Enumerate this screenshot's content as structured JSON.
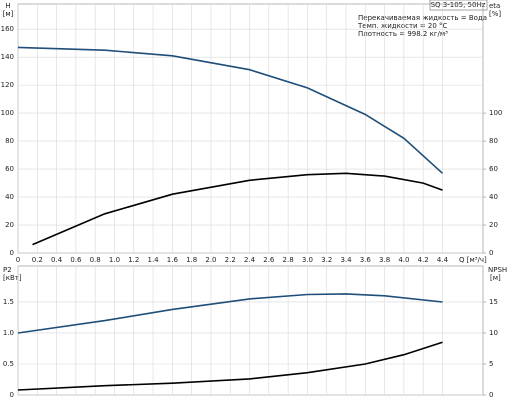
{
  "chart_data": [
    {
      "type": "line",
      "model": "SQ 3-105, 50Hz",
      "annotations": [
        "Перекачиваемая жидкость = Вода",
        "Темп. жидкости = 20 °C",
        "Плотность = 998.2 кг/м³"
      ],
      "ylabel": "H",
      "yunit": "[м]",
      "y2label": "eta",
      "y2unit": "[%]",
      "xlabel": "Q [м³/ч]",
      "xlim": [
        0,
        4.82
      ],
      "xticks": [
        0,
        0.2,
        0.4,
        0.6,
        0.8,
        {
          "value": 1,
          "label": "1.0"
        },
        1.2,
        1.4,
        1.6,
        1.8,
        {
          "value": 2,
          "label": "2.0"
        },
        2.2,
        2.4,
        2.6,
        2.8,
        {
          "value": 3,
          "label": "3.0"
        },
        3.2,
        3.4,
        3.6,
        3.8,
        {
          "value": 4,
          "label": "4.0"
        },
        4.2,
        4.4
      ],
      "ylim": [
        0,
        178
      ],
      "yticks": [
        0,
        20,
        40,
        60,
        80,
        100,
        120,
        140,
        160
      ],
      "y2lim": [
        0,
        178
      ],
      "y2ticks": [
        0,
        20,
        40,
        60,
        80,
        100
      ],
      "grid": true,
      "series": [
        {
          "color": "#1f4e79",
          "axis": "y",
          "x": [
            0,
            0.9,
            1.6,
            2.4,
            3.0,
            3.6,
            4.0,
            4.4
          ],
          "values": [
            147,
            145,
            141,
            131,
            118,
            99,
            82,
            57
          ]
        },
        {
          "color": "#000000",
          "axis": "y2",
          "x": [
            0.15,
            0.9,
            1.6,
            2.4,
            3.0,
            3.4,
            3.8,
            4.2,
            4.4
          ],
          "values": [
            6,
            28,
            42,
            52,
            56,
            57,
            55,
            50,
            45
          ]
        }
      ]
    },
    {
      "type": "line",
      "ylabel": "P2",
      "yunit": "[кВт]",
      "y2label": "NPSH",
      "y2unit": "[м]",
      "xlim": [
        0,
        4.82
      ],
      "ylim": [
        0,
        2.08
      ],
      "yticks": [
        0,
        0.5,
        {
          "value": 1,
          "label": "1.0"
        },
        1.5
      ],
      "y2lim": [
        0,
        20.8
      ],
      "y2ticks": [
        0,
        5,
        10,
        15
      ],
      "grid": true,
      "series": [
        {
          "color": "#1f4e79",
          "axis": "y",
          "x": [
            0,
            0.9,
            1.6,
            2.4,
            3.0,
            3.4,
            3.8,
            4.4
          ],
          "values": [
            1.0,
            1.2,
            1.38,
            1.55,
            1.62,
            1.63,
            1.6,
            1.5
          ]
        },
        {
          "color": "#000000",
          "axis": "y2",
          "x": [
            0,
            0.9,
            1.6,
            2.4,
            3.0,
            3.6,
            4.0,
            4.4
          ],
          "values": [
            0.8,
            1.5,
            1.9,
            2.6,
            3.6,
            5.0,
            6.5,
            8.5
          ]
        }
      ]
    }
  ]
}
